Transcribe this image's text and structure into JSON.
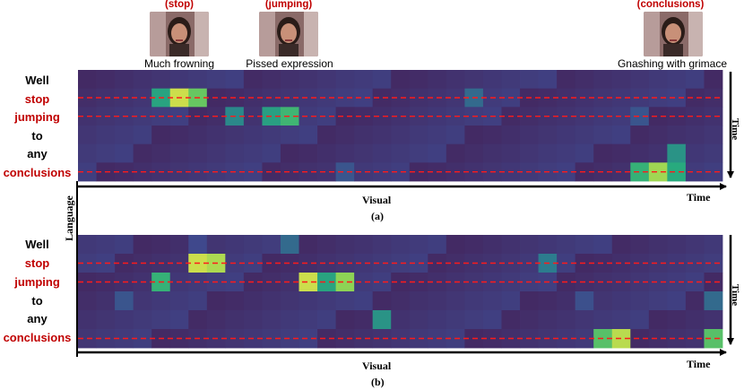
{
  "frames": [
    {
      "title": "(stop)",
      "caption": "Much frowning"
    },
    {
      "title": "(jumping)",
      "caption": "Pissed expression"
    },
    {
      "title": "(conclusions)",
      "caption": "Gnashing with grimace"
    }
  ],
  "words": [
    "Well",
    "stop",
    "jumping",
    "to",
    "any",
    "conclusions"
  ],
  "highlight_words": [
    "stop",
    "jumping",
    "conclusions"
  ],
  "axes": {
    "x_label": "Visual",
    "time_label": "Time",
    "y_label": "Language"
  },
  "panels": [
    {
      "label": "(a)",
      "heatmap": {
        "rows": 6,
        "cols": 35,
        "hot": [
          {
            "row": 1,
            "col": 4,
            "level": 0.62
          },
          {
            "row": 1,
            "col": 5,
            "level": 0.95
          },
          {
            "row": 1,
            "col": 6,
            "level": 0.78
          },
          {
            "row": 1,
            "col": 21,
            "level": 0.38
          },
          {
            "row": 2,
            "col": 8,
            "level": 0.5
          },
          {
            "row": 2,
            "col": 10,
            "level": 0.6
          },
          {
            "row": 2,
            "col": 11,
            "level": 0.7
          },
          {
            "row": 2,
            "col": 30,
            "level": 0.3
          },
          {
            "row": 4,
            "col": 32,
            "level": 0.55
          },
          {
            "row": 5,
            "col": 14,
            "level": 0.3
          },
          {
            "row": 5,
            "col": 30,
            "level": 0.68
          },
          {
            "row": 5,
            "col": 31,
            "level": 0.88
          },
          {
            "row": 5,
            "col": 32,
            "level": 0.65
          }
        ]
      }
    },
    {
      "label": "(b)",
      "heatmap": {
        "rows": 6,
        "cols": 35,
        "hot": [
          {
            "row": 0,
            "col": 11,
            "level": 0.38
          },
          {
            "row": 0,
            "col": 6,
            "level": 0.25
          },
          {
            "row": 1,
            "col": 6,
            "level": 0.95
          },
          {
            "row": 1,
            "col": 7,
            "level": 0.9
          },
          {
            "row": 1,
            "col": 25,
            "level": 0.45
          },
          {
            "row": 2,
            "col": 4,
            "level": 0.68
          },
          {
            "row": 2,
            "col": 12,
            "level": 0.95
          },
          {
            "row": 2,
            "col": 13,
            "level": 0.62
          },
          {
            "row": 2,
            "col": 14,
            "level": 0.85
          },
          {
            "row": 3,
            "col": 2,
            "level": 0.3
          },
          {
            "row": 3,
            "col": 27,
            "level": 0.28
          },
          {
            "row": 3,
            "col": 34,
            "level": 0.38
          },
          {
            "row": 4,
            "col": 16,
            "level": 0.55
          },
          {
            "row": 5,
            "col": 28,
            "level": 0.75
          },
          {
            "row": 5,
            "col": 29,
            "level": 0.92
          },
          {
            "row": 5,
            "col": 34,
            "level": 0.75
          }
        ]
      }
    }
  ],
  "colors": {
    "highlight_text": "#c00000",
    "guide_line": "#ff1a1a",
    "axis": "#000000"
  }
}
